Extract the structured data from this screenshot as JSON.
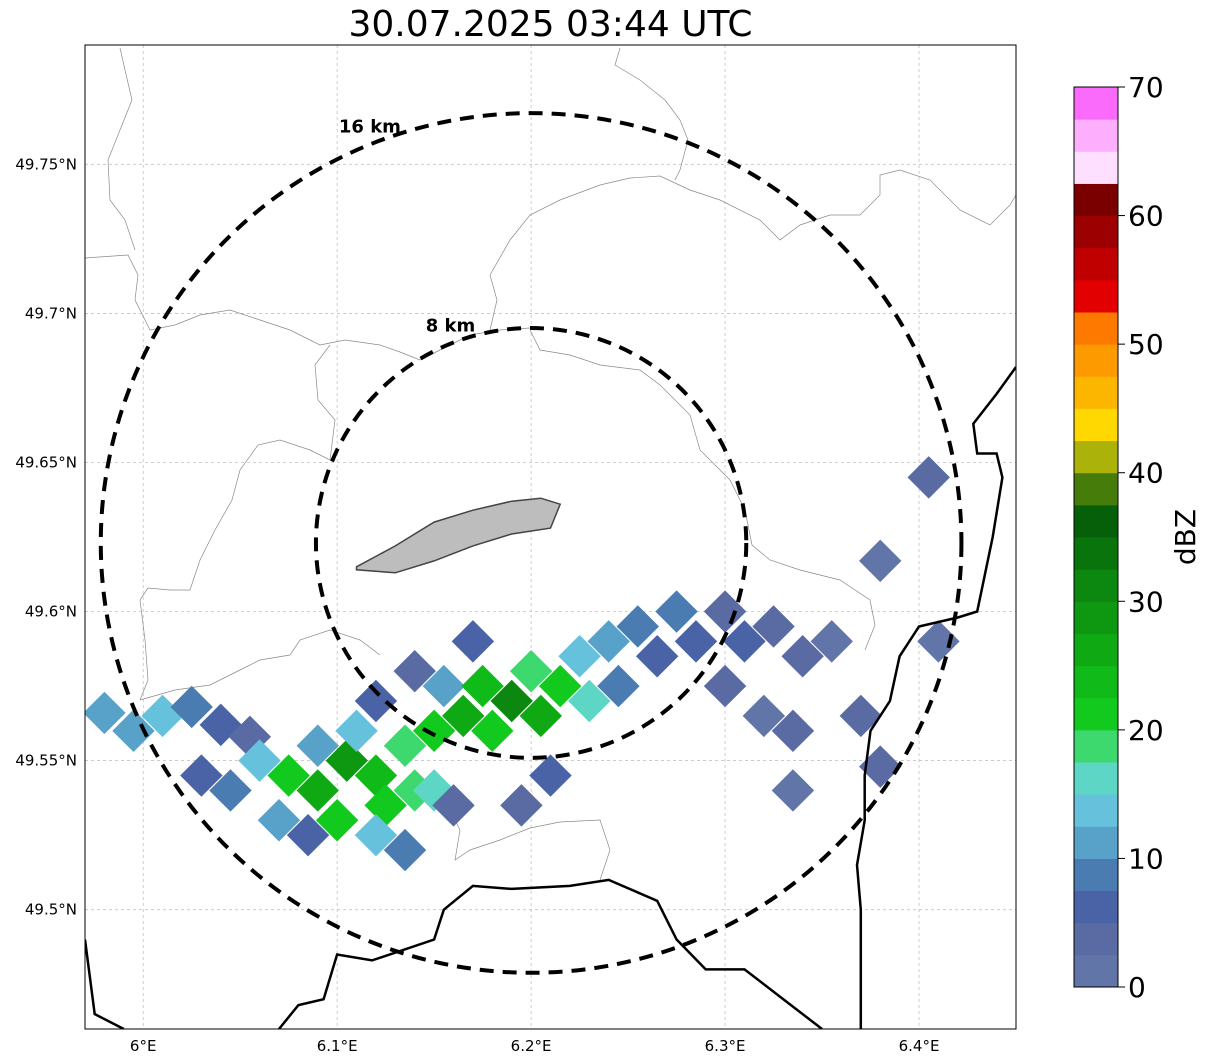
{
  "chart_data": {
    "type": "heatmap",
    "title": "30.07.2025 03:44 UTC",
    "xlim": [
      5.97,
      6.45
    ],
    "ylim": [
      49.46,
      49.79
    ],
    "x_ticks": [
      {
        "value": 6.0,
        "label": "6°E"
      },
      {
        "value": 6.1,
        "label": "6.1°E"
      },
      {
        "value": 6.2,
        "label": "6.2°E"
      },
      {
        "value": 6.3,
        "label": "6.3°E"
      },
      {
        "value": 6.4,
        "label": "6.4°E"
      }
    ],
    "y_ticks": [
      {
        "value": 49.5,
        "label": "49.5°N"
      },
      {
        "value": 49.55,
        "label": "49.55°N"
      },
      {
        "value": 49.6,
        "label": "49.6°N"
      },
      {
        "value": 49.65,
        "label": "49.65°N"
      },
      {
        "value": 49.7,
        "label": "49.7°N"
      },
      {
        "value": 49.75,
        "label": "49.75°N"
      }
    ],
    "grid": true,
    "center": {
      "lon": 6.2,
      "lat": 49.623
    },
    "range_rings": [
      {
        "label": "8 km",
        "radius_km": 8
      },
      {
        "label": "16 km",
        "radius_km": 16
      }
    ],
    "colorbar": {
      "label": "dBZ",
      "min": 0,
      "max": 70,
      "step": 2.5,
      "tick_values": [
        0,
        10,
        20,
        30,
        40,
        50,
        60,
        70
      ],
      "tick_labels": [
        "0",
        "10",
        "20",
        "30",
        "40",
        "50",
        "60",
        "70"
      ],
      "colors": [
        "#6275a8",
        "#5a6ba3",
        "#4a63a6",
        "#4a7cb2",
        "#58a2c9",
        "#66c1dd",
        "#5ed6c6",
        "#3dd86e",
        "#12c91e",
        "#10ba18",
        "#0fa913",
        "#0e9811",
        "#0c8710",
        "#09740c",
        "#065f09",
        "#467c0a",
        "#abb20a",
        "#fed800",
        "#fdb600",
        "#fd9a00",
        "#fd7900",
        "#e20000",
        "#c00000",
        "#9c0000",
        "#7a0000",
        "#fde0ff",
        "#fdaefd",
        "#fb6bfb",
        "#ee32ee"
      ]
    },
    "reflectivity_cells": [
      {
        "lon": 5.98,
        "lat": 49.566,
        "dbz": 12
      },
      {
        "lon": 5.995,
        "lat": 49.56,
        "dbz": 10
      },
      {
        "lon": 6.01,
        "lat": 49.565,
        "dbz": 13
      },
      {
        "lon": 6.025,
        "lat": 49.568,
        "dbz": 8
      },
      {
        "lon": 6.04,
        "lat": 49.562,
        "dbz": 5
      },
      {
        "lon": 6.055,
        "lat": 49.558,
        "dbz": 4
      },
      {
        "lon": 6.03,
        "lat": 49.545,
        "dbz": 6
      },
      {
        "lon": 6.045,
        "lat": 49.54,
        "dbz": 9
      },
      {
        "lon": 6.06,
        "lat": 49.55,
        "dbz": 14
      },
      {
        "lon": 6.075,
        "lat": 49.545,
        "dbz": 20
      },
      {
        "lon": 6.09,
        "lat": 49.54,
        "dbz": 25
      },
      {
        "lon": 6.07,
        "lat": 49.53,
        "dbz": 12
      },
      {
        "lon": 6.085,
        "lat": 49.525,
        "dbz": 7
      },
      {
        "lon": 6.1,
        "lat": 49.53,
        "dbz": 22
      },
      {
        "lon": 6.105,
        "lat": 49.55,
        "dbz": 28
      },
      {
        "lon": 6.12,
        "lat": 49.545,
        "dbz": 24
      },
      {
        "lon": 6.125,
        "lat": 49.535,
        "dbz": 21
      },
      {
        "lon": 6.11,
        "lat": 49.56,
        "dbz": 13
      },
      {
        "lon": 6.135,
        "lat": 49.555,
        "dbz": 19
      },
      {
        "lon": 6.14,
        "lat": 49.54,
        "dbz": 18
      },
      {
        "lon": 6.15,
        "lat": 49.56,
        "dbz": 22
      },
      {
        "lon": 6.155,
        "lat": 49.575,
        "dbz": 12
      },
      {
        "lon": 6.165,
        "lat": 49.565,
        "dbz": 27
      },
      {
        "lon": 6.175,
        "lat": 49.575,
        "dbz": 24
      },
      {
        "lon": 6.18,
        "lat": 49.56,
        "dbz": 21
      },
      {
        "lon": 6.19,
        "lat": 49.57,
        "dbz": 30
      },
      {
        "lon": 6.2,
        "lat": 49.58,
        "dbz": 18
      },
      {
        "lon": 6.205,
        "lat": 49.565,
        "dbz": 26
      },
      {
        "lon": 6.215,
        "lat": 49.575,
        "dbz": 22
      },
      {
        "lon": 6.225,
        "lat": 49.585,
        "dbz": 14
      },
      {
        "lon": 6.23,
        "lat": 49.57,
        "dbz": 17
      },
      {
        "lon": 6.17,
        "lat": 49.59,
        "dbz": 6
      },
      {
        "lon": 6.24,
        "lat": 49.59,
        "dbz": 11
      },
      {
        "lon": 6.245,
        "lat": 49.575,
        "dbz": 9
      },
      {
        "lon": 6.255,
        "lat": 49.595,
        "dbz": 8
      },
      {
        "lon": 6.265,
        "lat": 49.585,
        "dbz": 5
      },
      {
        "lon": 6.275,
        "lat": 49.6,
        "dbz": 9
      },
      {
        "lon": 6.285,
        "lat": 49.59,
        "dbz": 6
      },
      {
        "lon": 6.3,
        "lat": 49.6,
        "dbz": 4
      },
      {
        "lon": 6.31,
        "lat": 49.59,
        "dbz": 5
      },
      {
        "lon": 6.325,
        "lat": 49.595,
        "dbz": 3
      },
      {
        "lon": 6.34,
        "lat": 49.585,
        "dbz": 4
      },
      {
        "lon": 6.355,
        "lat": 49.59,
        "dbz": 1
      },
      {
        "lon": 6.3,
        "lat": 49.575,
        "dbz": 3
      },
      {
        "lon": 6.32,
        "lat": 49.565,
        "dbz": 2
      },
      {
        "lon": 6.335,
        "lat": 49.56,
        "dbz": 3
      },
      {
        "lon": 6.335,
        "lat": 49.54,
        "dbz": 1
      },
      {
        "lon": 6.21,
        "lat": 49.545,
        "dbz": 6
      },
      {
        "lon": 6.195,
        "lat": 49.535,
        "dbz": 4
      },
      {
        "lon": 6.15,
        "lat": 49.54,
        "dbz": 16
      },
      {
        "lon": 6.12,
        "lat": 49.525,
        "dbz": 14
      },
      {
        "lon": 6.135,
        "lat": 49.52,
        "dbz": 8
      },
      {
        "lon": 6.16,
        "lat": 49.535,
        "dbz": 3
      },
      {
        "lon": 6.12,
        "lat": 49.57,
        "dbz": 5
      },
      {
        "lon": 6.09,
        "lat": 49.555,
        "dbz": 10
      },
      {
        "lon": 6.14,
        "lat": 49.58,
        "dbz": 4
      },
      {
        "lon": 6.38,
        "lat": 49.617,
        "dbz": 2
      },
      {
        "lon": 6.41,
        "lat": 49.59,
        "dbz": 1
      },
      {
        "lon": 6.405,
        "lat": 49.645,
        "dbz": 3
      },
      {
        "lon": 6.37,
        "lat": 49.565,
        "dbz": 4
      },
      {
        "lon": 6.38,
        "lat": 49.548,
        "dbz": 3
      }
    ],
    "city_outline": [
      [
        6.11,
        49.615
      ],
      [
        6.13,
        49.622
      ],
      [
        6.15,
        49.63
      ],
      [
        6.17,
        49.634
      ],
      [
        6.19,
        49.637
      ],
      [
        6.205,
        49.638
      ],
      [
        6.215,
        49.636
      ],
      [
        6.21,
        49.628
      ],
      [
        6.19,
        49.626
      ],
      [
        6.17,
        49.622
      ],
      [
        6.15,
        49.617
      ],
      [
        6.13,
        49.613
      ],
      [
        6.11,
        49.614
      ]
    ],
    "border_line_1": [
      [
        6.45,
        49.682
      ],
      [
        6.44,
        49.673
      ],
      [
        6.428,
        49.663
      ],
      [
        6.43,
        49.653
      ],
      [
        6.44,
        49.653
      ],
      [
        6.443,
        49.645
      ],
      [
        6.438,
        49.625
      ],
      [
        6.43,
        49.6
      ],
      [
        6.42,
        49.598
      ],
      [
        6.4,
        49.595
      ],
      [
        6.39,
        49.585
      ],
      [
        6.385,
        49.57
      ],
      [
        6.375,
        49.56
      ],
      [
        6.372,
        49.545
      ],
      [
        6.372,
        49.53
      ],
      [
        6.368,
        49.515
      ],
      [
        6.37,
        49.5
      ],
      [
        6.37,
        49.48
      ],
      [
        6.37,
        49.46
      ]
    ],
    "border_line_2": [
      [
        6.07,
        49.46
      ],
      [
        6.08,
        49.468
      ],
      [
        6.093,
        49.47
      ],
      [
        6.1,
        49.485
      ],
      [
        6.118,
        49.483
      ],
      [
        6.15,
        49.49
      ],
      [
        6.155,
        49.5
      ],
      [
        6.17,
        49.508
      ],
      [
        6.19,
        49.507
      ],
      [
        6.22,
        49.508
      ],
      [
        6.24,
        49.51
      ],
      [
        6.265,
        49.503
      ],
      [
        6.275,
        49.49
      ],
      [
        6.29,
        49.48
      ],
      [
        6.31,
        49.48
      ],
      [
        6.33,
        49.47
      ],
      [
        6.35,
        49.46
      ]
    ],
    "border_line_3": [
      [
        5.97,
        49.49
      ],
      [
        5.975,
        49.465
      ],
      [
        5.99,
        49.46
      ]
    ]
  }
}
